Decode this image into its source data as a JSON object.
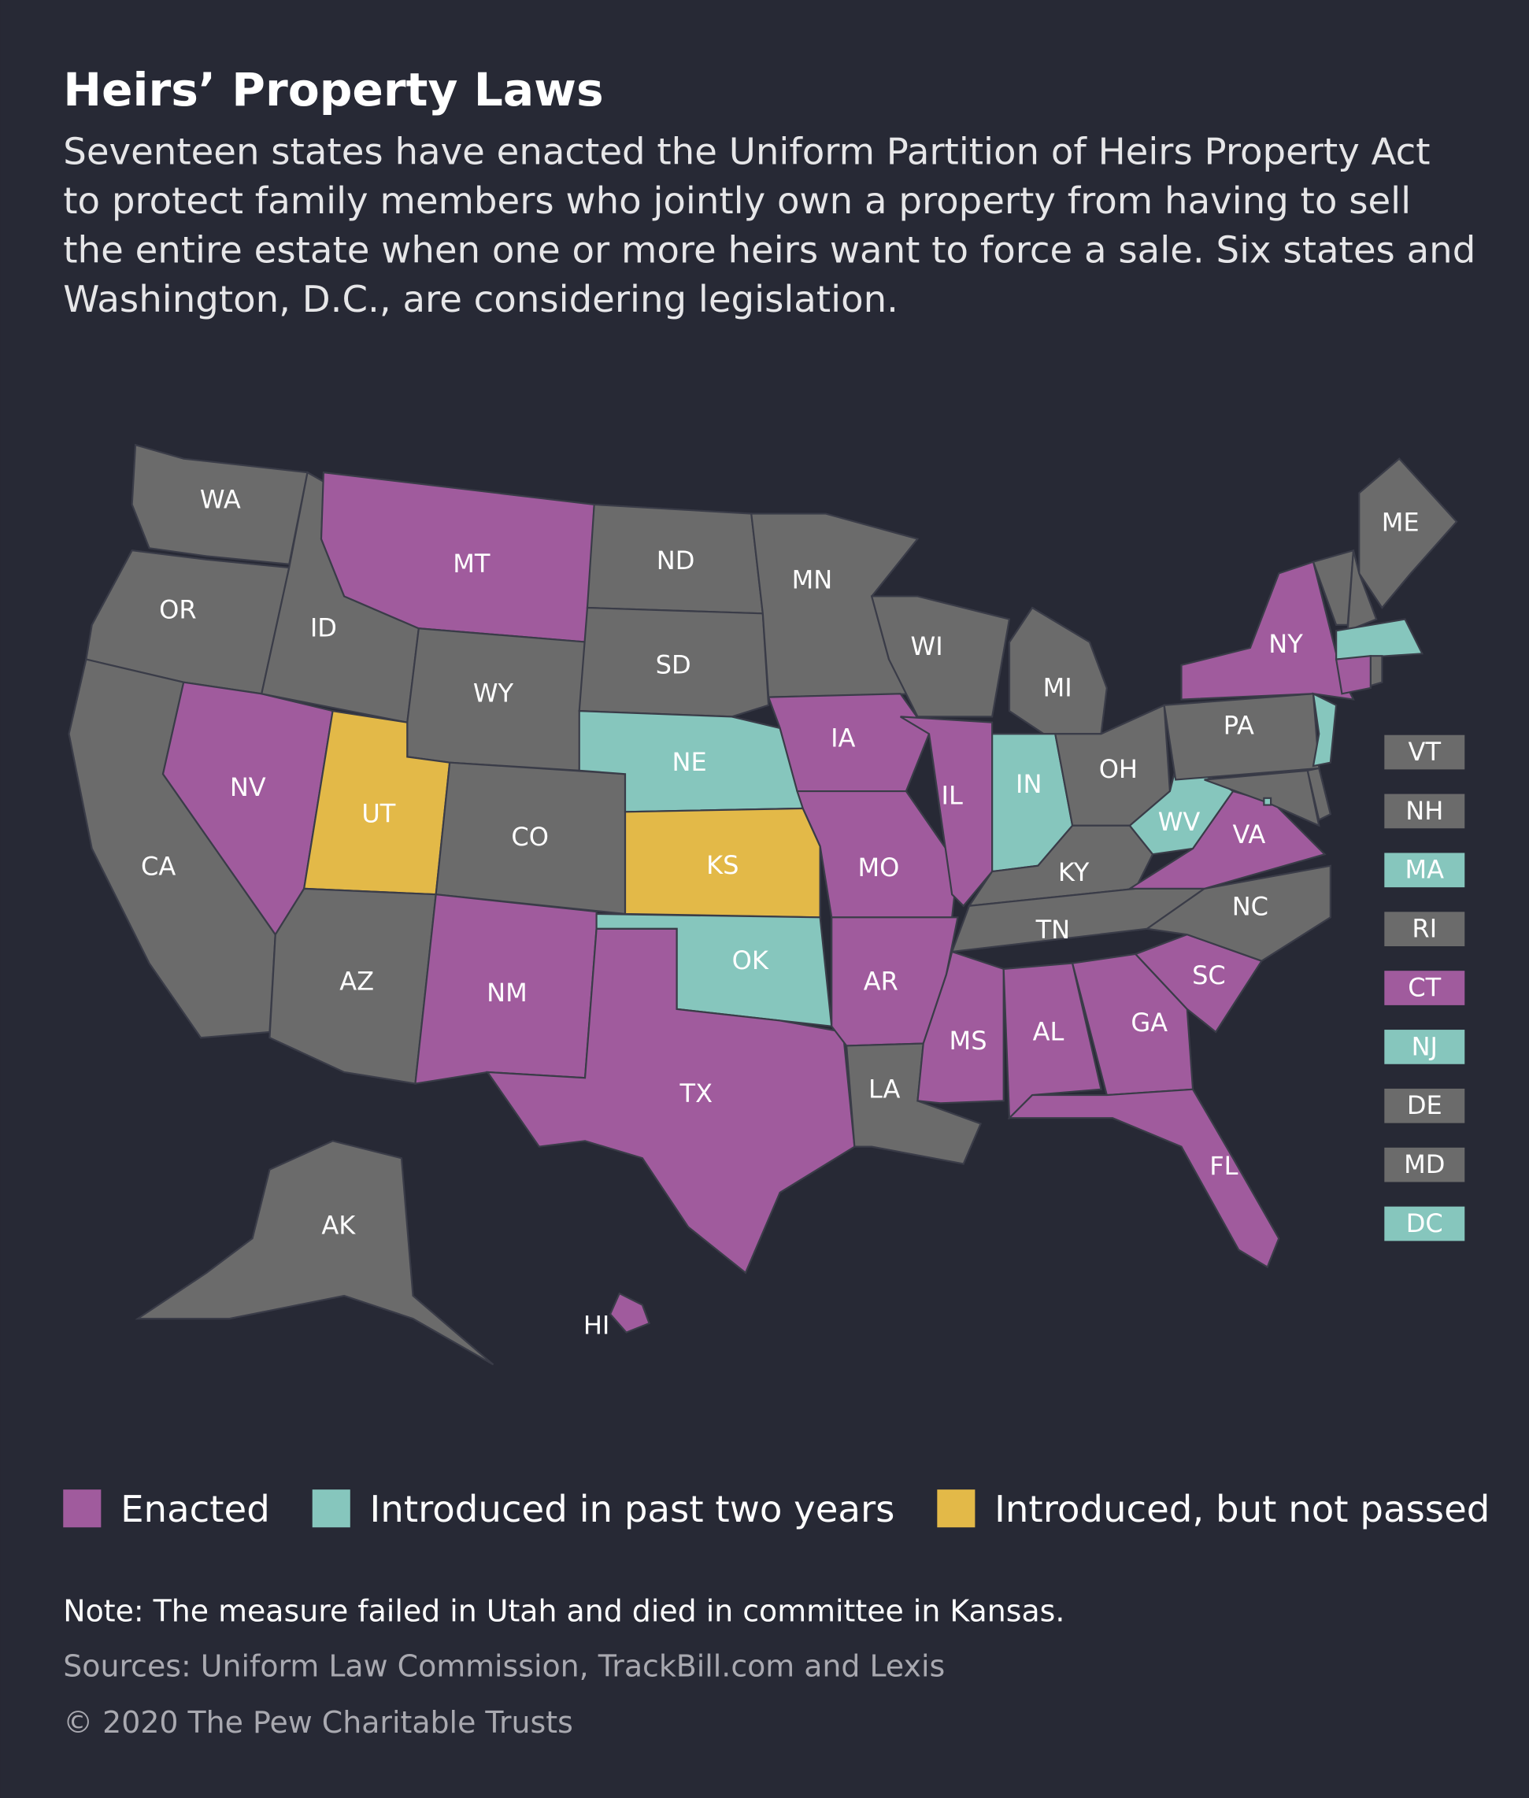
{
  "header": {
    "title": "Heirs’ Property Laws",
    "subtitle_lines": [
      "Seventeen states have enacted the Uniform Partition of Heirs Property Act",
      "to protect family members who jointly own a property from having to sell",
      "the entire estate when one or more heirs want to force a sale. Six states and",
      "Washington, D.C., are considering legislation."
    ]
  },
  "map": {
    "default_color": "#6b6b6b",
    "states": [
      {
        "abbr": "WA",
        "status": null
      },
      {
        "abbr": "OR",
        "status": null
      },
      {
        "abbr": "CA",
        "status": null
      },
      {
        "abbr": "NV",
        "status": 0
      },
      {
        "abbr": "ID",
        "status": null
      },
      {
        "abbr": "MT",
        "status": 0
      },
      {
        "abbr": "WY",
        "status": null
      },
      {
        "abbr": "UT",
        "status": 2
      },
      {
        "abbr": "AZ",
        "status": null
      },
      {
        "abbr": "CO",
        "status": null
      },
      {
        "abbr": "NM",
        "status": 0
      },
      {
        "abbr": "ND",
        "status": null
      },
      {
        "abbr": "SD",
        "status": null
      },
      {
        "abbr": "NE",
        "status": 1
      },
      {
        "abbr": "KS",
        "status": 2
      },
      {
        "abbr": "OK",
        "status": 1
      },
      {
        "abbr": "TX",
        "status": 0
      },
      {
        "abbr": "MN",
        "status": null
      },
      {
        "abbr": "IA",
        "status": 0
      },
      {
        "abbr": "MO",
        "status": 0
      },
      {
        "abbr": "AR",
        "status": 0
      },
      {
        "abbr": "LA",
        "status": null
      },
      {
        "abbr": "WI",
        "status": null
      },
      {
        "abbr": "IL",
        "status": 0
      },
      {
        "abbr": "MI",
        "status": null
      },
      {
        "abbr": "IN",
        "status": 1
      },
      {
        "abbr": "OH",
        "status": null
      },
      {
        "abbr": "KY",
        "status": null
      },
      {
        "abbr": "TN",
        "status": null
      },
      {
        "abbr": "MS",
        "status": 0
      },
      {
        "abbr": "AL",
        "status": 0
      },
      {
        "abbr": "GA",
        "status": 0
      },
      {
        "abbr": "FL",
        "status": 0
      },
      {
        "abbr": "SC",
        "status": 0
      },
      {
        "abbr": "NC",
        "status": null
      },
      {
        "abbr": "VA",
        "status": 0
      },
      {
        "abbr": "WV",
        "status": 1
      },
      {
        "abbr": "PA",
        "status": null
      },
      {
        "abbr": "NY",
        "status": 0
      },
      {
        "abbr": "ME",
        "status": null
      },
      {
        "abbr": "AK",
        "status": null
      },
      {
        "abbr": "HI",
        "status": 0
      },
      {
        "abbr": "VT",
        "status": null
      },
      {
        "abbr": "NH",
        "status": null
      },
      {
        "abbr": "MA",
        "status": 1
      },
      {
        "abbr": "RI",
        "status": null
      },
      {
        "abbr": "CT",
        "status": 0
      },
      {
        "abbr": "NJ",
        "status": 1
      },
      {
        "abbr": "DE",
        "status": null
      },
      {
        "abbr": "MD",
        "status": null
      },
      {
        "abbr": "DC",
        "status": 1
      }
    ]
  },
  "legend": [
    {
      "label": "Enacted",
      "color": "#a05b9d"
    },
    {
      "label": "Introduced in past two years",
      "color": "#86c6bd"
    },
    {
      "label": "Introduced, but not passed",
      "color": "#e3b948"
    }
  ],
  "footer": {
    "note": "Note: The measure failed in Utah and died in committee in Kansas.",
    "sources": "Sources: Uniform Law Commission, TrackBill.com and Lexis",
    "copyright": "© 2020 The Pew Charitable Trusts"
  }
}
